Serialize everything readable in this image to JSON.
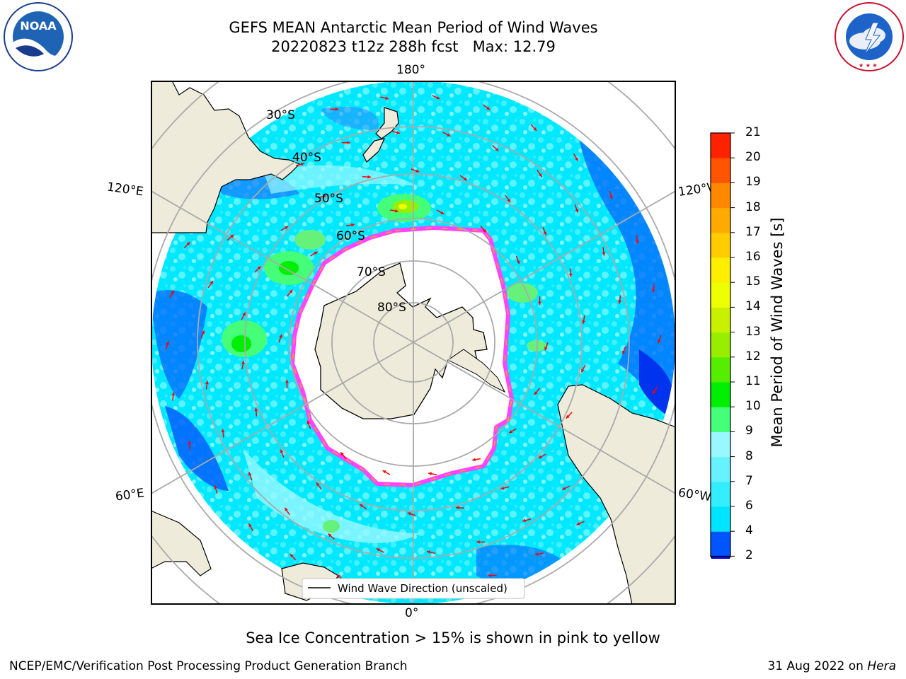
{
  "title": {
    "line1": "GEFS MEAN Antarctic Mean Period of Wind Waves",
    "line2": "20220823 t12z 288h fcst   Max: 12.79"
  },
  "logos": {
    "noaa_text": "NOAA",
    "noaa_ring": "NATIONAL OCEANIC AND ATMOSPHERIC ADMINISTRATION · U.S. DEPARTMENT OF COMMERCE",
    "nws_ring": "NATIONAL WEATHER SERVICE"
  },
  "map": {
    "longitude_labels": {
      "top": "180°",
      "bottom": "0°",
      "upper_left": "120°E",
      "upper_right": "120°W",
      "lower_left": "60°E",
      "lower_right": "60°W"
    },
    "latitude_labels": [
      "30°S",
      "40°S",
      "50°S",
      "60°S",
      "70°S",
      "80°S"
    ],
    "legend_label": "Wind Wave Direction (unscaled)",
    "land_color": "#eeebda",
    "arrow_color": "#ff0000",
    "sea_ice_colors": [
      "#ff44ff",
      "#ffaa00",
      "#ffee00"
    ]
  },
  "colorbar": {
    "label": "Mean Period of Wind Waves [s]",
    "ticks": [
      "2",
      "4",
      "6",
      "7",
      "8",
      "9",
      "10",
      "11",
      "12",
      "13",
      "14",
      "15",
      "16",
      "17",
      "18",
      "19",
      "20",
      "21"
    ],
    "colors": [
      "#0055ff",
      "#00e5ff",
      "#33eeff",
      "#66f2ff",
      "#99f8ff",
      "#44ff77",
      "#00ee00",
      "#55ee00",
      "#99ee00",
      "#c8f000",
      "#eeff00",
      "#ffee00",
      "#ffcc00",
      "#ffaa00",
      "#ff8800",
      "#ff5500",
      "#ff2200"
    ],
    "under_color": "#0000ee"
  },
  "chart_data": {
    "type": "heatmap",
    "title": "GEFS MEAN Antarctic Mean Period of Wind Waves",
    "subtitle": "20220823 t12z 288h fcst   Max: 12.79",
    "projection": "south polar stereographic",
    "variable": "Mean Period of Wind Waves [s]",
    "max": 12.79,
    "colorbar_levels": [
      2,
      4,
      6,
      7,
      8,
      9,
      10,
      11,
      12,
      13,
      14,
      15,
      16,
      17,
      18,
      19,
      20,
      21
    ],
    "overlay": "Wind Wave Direction (unscaled)"
  },
  "footer": {
    "note": "Sea Ice Concentration > 15% is shown in pink to yellow",
    "credit": "NCEP/EMC/Verification Post Processing Product Generation Branch",
    "date_prefix": "31 Aug 2022 on ",
    "machine": "Hera"
  }
}
